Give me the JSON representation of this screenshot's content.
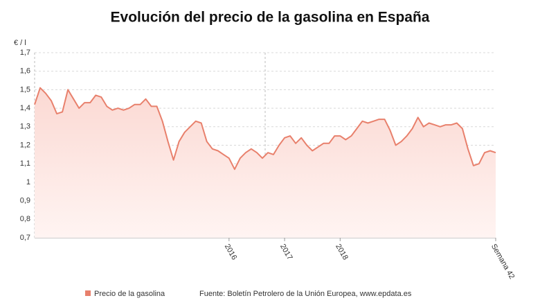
{
  "chart_data": {
    "type": "line",
    "title": "Evolución del precio de la gasolina en España",
    "y_label": "€ / l",
    "source": "Fuente: Boletín Petrolero de la Unión Europea, www.epdata.es",
    "categories": [
      null,
      null,
      null,
      null,
      null,
      null,
      null,
      null,
      null,
      null,
      null,
      null,
      null,
      null,
      null,
      null,
      null,
      null,
      null,
      null,
      null,
      null,
      null,
      null,
      null,
      null,
      null,
      null,
      null,
      null,
      null,
      null,
      null,
      null,
      null,
      "2016",
      null,
      null,
      null,
      null,
      null,
      null,
      null,
      null,
      null,
      "2017",
      null,
      null,
      null,
      null,
      null,
      null,
      null,
      null,
      null,
      "2018",
      null,
      null,
      null,
      null,
      null,
      null,
      null,
      null,
      null,
      null,
      null,
      null,
      null,
      null,
      null,
      null,
      null,
      null,
      null,
      null,
      null,
      null,
      null,
      null,
      null,
      null,
      null,
      "Semana 42"
    ],
    "series": [
      {
        "name": "Precio de la gasolina",
        "color": "#e8806c",
        "values": [
          1.42,
          1.51,
          1.48,
          1.44,
          1.37,
          1.38,
          1.5,
          1.45,
          1.4,
          1.43,
          1.43,
          1.47,
          1.46,
          1.41,
          1.39,
          1.4,
          1.39,
          1.4,
          1.42,
          1.42,
          1.45,
          1.41,
          1.41,
          1.33,
          1.22,
          1.12,
          1.22,
          1.27,
          1.3,
          1.33,
          1.32,
          1.22,
          1.18,
          1.17,
          1.15,
          1.13,
          1.07,
          1.13,
          1.16,
          1.18,
          1.16,
          1.13,
          1.16,
          1.15,
          1.2,
          1.24,
          1.25,
          1.21,
          1.24,
          1.2,
          1.17,
          1.19,
          1.21,
          1.21,
          1.25,
          1.25,
          1.23,
          1.25,
          1.29,
          1.33,
          1.32,
          1.33,
          1.34,
          1.34,
          1.28,
          1.2,
          1.22,
          1.25,
          1.29,
          1.35,
          1.3,
          1.32,
          1.31,
          1.3,
          1.31,
          1.31,
          1.32,
          1.29,
          1.18,
          1.09,
          1.1,
          1.16,
          1.17,
          1.16
        ]
      }
    ],
    "ylim": [
      0.7,
      1.7
    ],
    "yticks": [
      {
        "value": 0.7,
        "label": "0,7"
      },
      {
        "value": 0.8,
        "label": "0,8"
      },
      {
        "value": 0.9,
        "label": "0,9"
      },
      1,
      {
        "value": 1.1,
        "label": "1,1"
      },
      {
        "value": 1.2,
        "label": "1,2"
      },
      {
        "value": 1.3,
        "label": "1,3"
      },
      {
        "value": 1.4,
        "label": "1,4"
      },
      {
        "value": 1.5,
        "label": "1,5"
      },
      {
        "value": 1.6,
        "label": "1,6"
      },
      {
        "value": 1.7,
        "label": "1,7"
      }
    ],
    "grid": true
  }
}
